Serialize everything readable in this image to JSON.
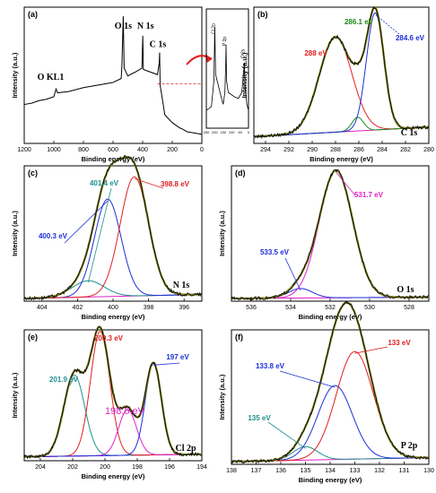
{
  "chart_data": [
    {
      "panel": "(a)",
      "type": "line",
      "xlabel": "Binding energy (eV)",
      "ylabel": "Intensity (a.u.)",
      "xlim": [
        1200,
        0
      ],
      "xticks": [
        1200,
        1000,
        800,
        600,
        400,
        200,
        0
      ],
      "peak_labels": [
        {
          "text": "O KL1",
          "x": 985
        },
        {
          "text": "O 1s",
          "x": 531
        },
        {
          "text": "N 1s",
          "x": 399
        },
        {
          "text": "C 1s",
          "x": 285
        }
      ],
      "x": [
        1200,
        1150,
        1100,
        1050,
        1000,
        990,
        985,
        975,
        900,
        800,
        700,
        600,
        545,
        540,
        531,
        525,
        500,
        450,
        405,
        399,
        395,
        300,
        288,
        285,
        282,
        250,
        200,
        150,
        130,
        100,
        50,
        0
      ],
      "y": [
        0.3,
        0.31,
        0.33,
        0.34,
        0.36,
        0.4,
        0.42,
        0.39,
        0.4,
        0.43,
        0.45,
        0.47,
        0.5,
        0.6,
        0.98,
        0.58,
        0.52,
        0.55,
        0.58,
        0.83,
        0.57,
        0.53,
        0.62,
        0.7,
        0.45,
        0.22,
        0.16,
        0.12,
        0.11,
        0.09,
        0.08,
        0.07
      ]
    },
    {
      "panel": "inset",
      "type": "line",
      "xlim": [
        250,
        0
      ],
      "xticks": [
        250,
        200,
        150,
        100,
        50,
        0
      ],
      "peak_labels": [
        {
          "text": "Cl 2p",
          "x": 200
        },
        {
          "text": "P 2p",
          "x": 133
        },
        {
          "text": "O 2s",
          "x": 25
        }
      ],
      "x": [
        250,
        220,
        205,
        200,
        195,
        160,
        150,
        140,
        135,
        133,
        130,
        120,
        100,
        80,
        60,
        40,
        30,
        25,
        20,
        10,
        0
      ],
      "y": [
        0.15,
        0.18,
        0.4,
        0.85,
        0.45,
        0.25,
        0.2,
        0.3,
        0.55,
        0.7,
        0.4,
        0.3,
        0.28,
        0.26,
        0.25,
        0.3,
        0.45,
        0.55,
        0.35,
        0.2,
        0.15
      ]
    },
    {
      "panel": "(b)",
      "type": "line",
      "xlabel": "Binding energy (eV)",
      "ylabel": "Intensity (a.u.)",
      "element_label": "C 1s",
      "xlim": [
        295,
        280
      ],
      "xticks": [
        294,
        292,
        290,
        288,
        286,
        284,
        282,
        280
      ],
      "peaks": [
        {
          "label": "288 eV",
          "center": 288.0,
          "height": 0.7,
          "width": 1.4,
          "color": "#e02020"
        },
        {
          "label": "286.1 eV",
          "center": 286.1,
          "height": 0.1,
          "width": 0.5,
          "color": "#1a8a1a"
        },
        {
          "label": "284.6 eV",
          "center": 284.6,
          "height": 0.86,
          "width": 0.75,
          "color": "#1c2fd6"
        }
      ],
      "background": [
        0.05,
        0.12
      ]
    },
    {
      "panel": "(c)",
      "type": "line",
      "xlabel": "Binding energy (eV)",
      "ylabel": "Intensity (a.u.)",
      "element_label": "N 1s",
      "xlim": [
        405,
        395
      ],
      "xticks": [
        404,
        402,
        400,
        398,
        396
      ],
      "peaks": [
        {
          "label": "401.4 eV",
          "center": 401.4,
          "height": 0.12,
          "width": 0.9,
          "color": "#1f8f8f"
        },
        {
          "label": "400.3 eV",
          "center": 400.3,
          "height": 0.72,
          "width": 0.75,
          "color": "#1c2fd6"
        },
        {
          "label": "398.8 eV",
          "center": 398.8,
          "height": 0.88,
          "width": 0.8,
          "color": "#e02020"
        }
      ],
      "background": [
        0.02,
        0.05
      ]
    },
    {
      "panel": "(d)",
      "type": "line",
      "xlabel": "Binding energy (eV)",
      "ylabel": "Intensity (a.u.)",
      "element_label": "O 1s",
      "xlim": [
        537,
        527
      ],
      "xticks": [
        536,
        534,
        532,
        530,
        528
      ],
      "peaks": [
        {
          "label": "533.5 eV",
          "center": 533.5,
          "height": 0.07,
          "width": 0.6,
          "color": "#1c2fd6"
        },
        {
          "label": "531.7 eV",
          "center": 531.7,
          "height": 0.94,
          "width": 0.85,
          "color": "#e020c8"
        }
      ],
      "background": [
        0.02,
        0.03
      ]
    },
    {
      "panel": "(e)",
      "type": "line",
      "xlabel": "Binding energy (eV)",
      "ylabel": "Intensity (a.u.)",
      "element_label": "Cl 2p",
      "xlim": [
        205,
        194
      ],
      "xticks": [
        204,
        202,
        200,
        198,
        196,
        194
      ],
      "peaks": [
        {
          "label": "201.9 eV",
          "center": 201.9,
          "height": 0.62,
          "width": 0.65,
          "color": "#1f8f8f"
        },
        {
          "label": "200.3 eV",
          "center": 200.3,
          "height": 0.95,
          "width": 0.6,
          "color": "#e02020"
        },
        {
          "label": "198.6 eV",
          "center": 198.6,
          "height": 0.35,
          "width": 0.55,
          "color": "#e020c8"
        },
        {
          "label": "197 eV",
          "center": 197.0,
          "height": 0.7,
          "width": 0.5,
          "color": "#1c2fd6"
        }
      ],
      "background": [
        0.03,
        0.05
      ]
    },
    {
      "panel": "(f)",
      "type": "line",
      "xlabel": "Binding energy (eV)",
      "ylabel": "Intensity (a.u.)",
      "element_label": "P 2p",
      "xlim": [
        138,
        130
      ],
      "xticks": [
        138,
        137,
        136,
        135,
        134,
        133,
        132,
        131,
        130
      ],
      "peaks": [
        {
          "label": "135 eV",
          "center": 135.0,
          "height": 0.1,
          "width": 0.5,
          "color": "#1f8f8f"
        },
        {
          "label": "133.8 eV",
          "center": 133.8,
          "height": 0.55,
          "width": 0.7,
          "color": "#1c2fd6"
        },
        {
          "label": "133 eV",
          "center": 133.0,
          "height": 0.8,
          "width": 0.75,
          "color": "#e02020"
        }
      ],
      "background": [
        0.02,
        0.05
      ]
    }
  ],
  "colors": {
    "raw": "#000000",
    "envelope": "#7a7a1a",
    "background_line": "#e020c8",
    "arrow": "#e02020"
  }
}
